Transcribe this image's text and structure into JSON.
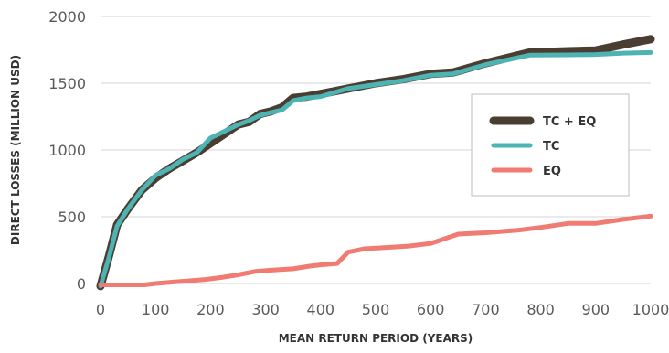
{
  "chart_data": {
    "type": "line",
    "title": "",
    "xlabel": "MEAN RETURN PERIOD (YEARS)",
    "ylabel": "DIRECT LOSSES (MILLION USD)",
    "xlim": [
      0,
      1000
    ],
    "ylim": [
      0,
      2000
    ],
    "x_ticks": [
      "0",
      "100",
      "200",
      "300",
      "400",
      "500",
      "600",
      "700",
      "800",
      "900",
      "1000"
    ],
    "y_ticks": [
      "0",
      "500",
      "1000",
      "1500",
      "2000"
    ],
    "grid": "horizontal",
    "legend_position": "center-right",
    "series": [
      {
        "name": "TC + EQ",
        "color": "#4a3d31",
        "x": [
          0,
          15,
          30,
          50,
          75,
          100,
          125,
          150,
          175,
          200,
          225,
          250,
          270,
          290,
          310,
          330,
          350,
          375,
          400,
          425,
          450,
          500,
          550,
          600,
          640,
          700,
          780,
          850,
          900,
          950,
          1000
        ],
        "y": [
          -20,
          200,
          440,
          560,
          700,
          790,
          860,
          920,
          980,
          1050,
          1120,
          1190,
          1210,
          1270,
          1290,
          1320,
          1390,
          1400,
          1420,
          1440,
          1460,
          1500,
          1530,
          1570,
          1580,
          1650,
          1730,
          1740,
          1745,
          1790,
          1830
        ]
      },
      {
        "name": "TC",
        "color": "#4db3b3",
        "x": [
          0,
          15,
          30,
          50,
          75,
          100,
          125,
          150,
          175,
          200,
          225,
          250,
          270,
          290,
          310,
          330,
          350,
          375,
          400,
          425,
          450,
          500,
          550,
          600,
          640,
          700,
          780,
          850,
          900,
          950,
          1000
        ],
        "y": [
          -20,
          190,
          430,
          560,
          700,
          810,
          860,
          930,
          980,
          1090,
          1140,
          1190,
          1220,
          1260,
          1280,
          1300,
          1370,
          1390,
          1400,
          1430,
          1460,
          1490,
          1520,
          1560,
          1570,
          1640,
          1710,
          1712,
          1715,
          1725,
          1730
        ]
      },
      {
        "name": "EQ",
        "color": "#f07b72",
        "x": [
          0,
          20,
          50,
          80,
          100,
          130,
          160,
          190,
          220,
          250,
          280,
          310,
          350,
          380,
          400,
          430,
          450,
          480,
          520,
          560,
          600,
          650,
          700,
          760,
          800,
          850,
          900,
          950,
          1000
        ],
        "y": [
          -10,
          -10,
          -10,
          -10,
          0,
          10,
          20,
          30,
          45,
          65,
          90,
          100,
          110,
          130,
          140,
          150,
          235,
          260,
          270,
          280,
          300,
          370,
          380,
          400,
          420,
          450,
          450,
          480,
          505
        ]
      }
    ]
  }
}
